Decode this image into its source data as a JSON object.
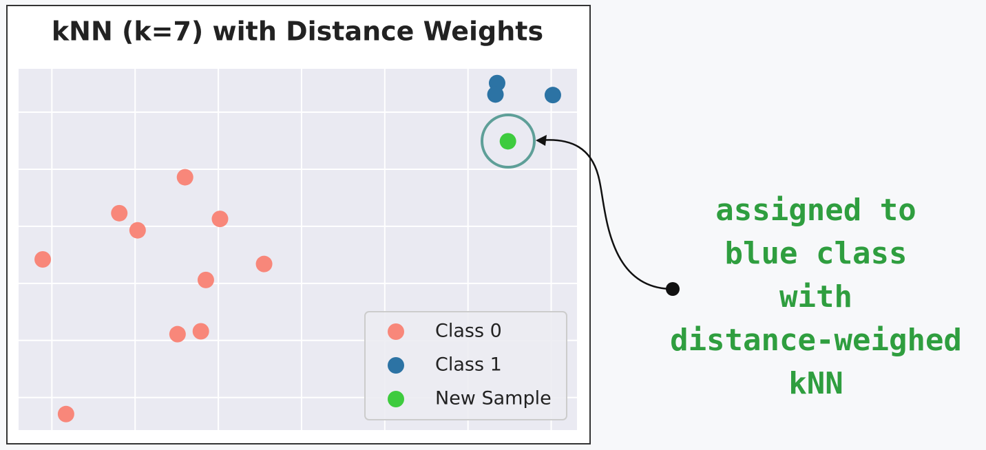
{
  "chart_data": {
    "type": "scatter",
    "title": "kNN (k=7) with Distance Weights",
    "xlim": [
      -3.4,
      3.31
    ],
    "ylim": [
      -2.57,
      3.76
    ],
    "xticks": [
      -3,
      -2,
      -1,
      0,
      1,
      2,
      3
    ],
    "yticks": [
      -2,
      -1,
      0,
      1,
      2,
      3
    ],
    "grid": true,
    "legend": "lower right",
    "series": [
      {
        "name": "Class 0",
        "color": "#f8877a",
        "x": [
          -1.4,
          -2.19,
          -1.97,
          -0.98,
          -3.11,
          -0.45,
          -1.15,
          -1.49,
          -1.21,
          -2.83
        ],
        "values": [
          1.86,
          1.23,
          0.93,
          1.13,
          0.42,
          0.34,
          0.06,
          -0.89,
          -0.84,
          -2.29
        ]
      },
      {
        "name": "Class 1",
        "color": "#2c73a4",
        "x": [
          2.35,
          2.33,
          3.02
        ],
        "values": [
          3.51,
          3.31,
          3.3
        ]
      },
      {
        "name": "New Sample",
        "color": "#3ecb3e",
        "x": [
          2.48
        ],
        "values": [
          2.49
        ]
      }
    ],
    "annotation": [
      "assigned to",
      "blue class",
      "with",
      "distance-weighed",
      "kNN"
    ]
  }
}
